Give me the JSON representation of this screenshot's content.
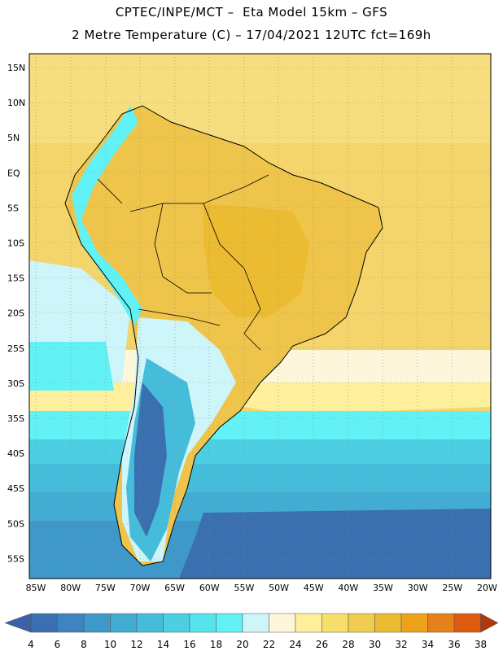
{
  "header": {
    "line1": "CPTEC/INPE/MCT –  Eta Model 15km – GFS",
    "line2": "2 Metre Temperature (C) – 17/04/2021 12UTC fct=169h"
  },
  "map": {
    "lat_labels": [
      "15N",
      "10N",
      "5N",
      "EQ",
      "5S",
      "10S",
      "15S",
      "20S",
      "25S",
      "30S",
      "35S",
      "40S",
      "45S",
      "50S",
      "55S"
    ],
    "lon_labels": [
      "85W",
      "80W",
      "75W",
      "70W",
      "65W",
      "60W",
      "55W",
      "50W",
      "45W",
      "40W",
      "35W",
      "30W",
      "25W",
      "20W"
    ]
  },
  "colorbar": {
    "labels": [
      "4",
      "6",
      "8",
      "10",
      "12",
      "14",
      "16",
      "18",
      "20",
      "22",
      "24",
      "26",
      "28",
      "30",
      "32",
      "34",
      "36",
      "38"
    ],
    "colors": [
      "#3a6fb0",
      "#3d84c0",
      "#3e98c9",
      "#42acd3",
      "#46bcdb",
      "#4ccfe2",
      "#55e3ec",
      "#62f2f5",
      "#cdf5fa",
      "#fdf6da",
      "#fdef9c",
      "#f8df6c",
      "#f0cd50",
      "#ebbb32",
      "#eda21a",
      "#e5801a",
      "#dd5c10",
      "#c9410a",
      "#b0380f",
      "#3b62a8"
    ]
  }
}
